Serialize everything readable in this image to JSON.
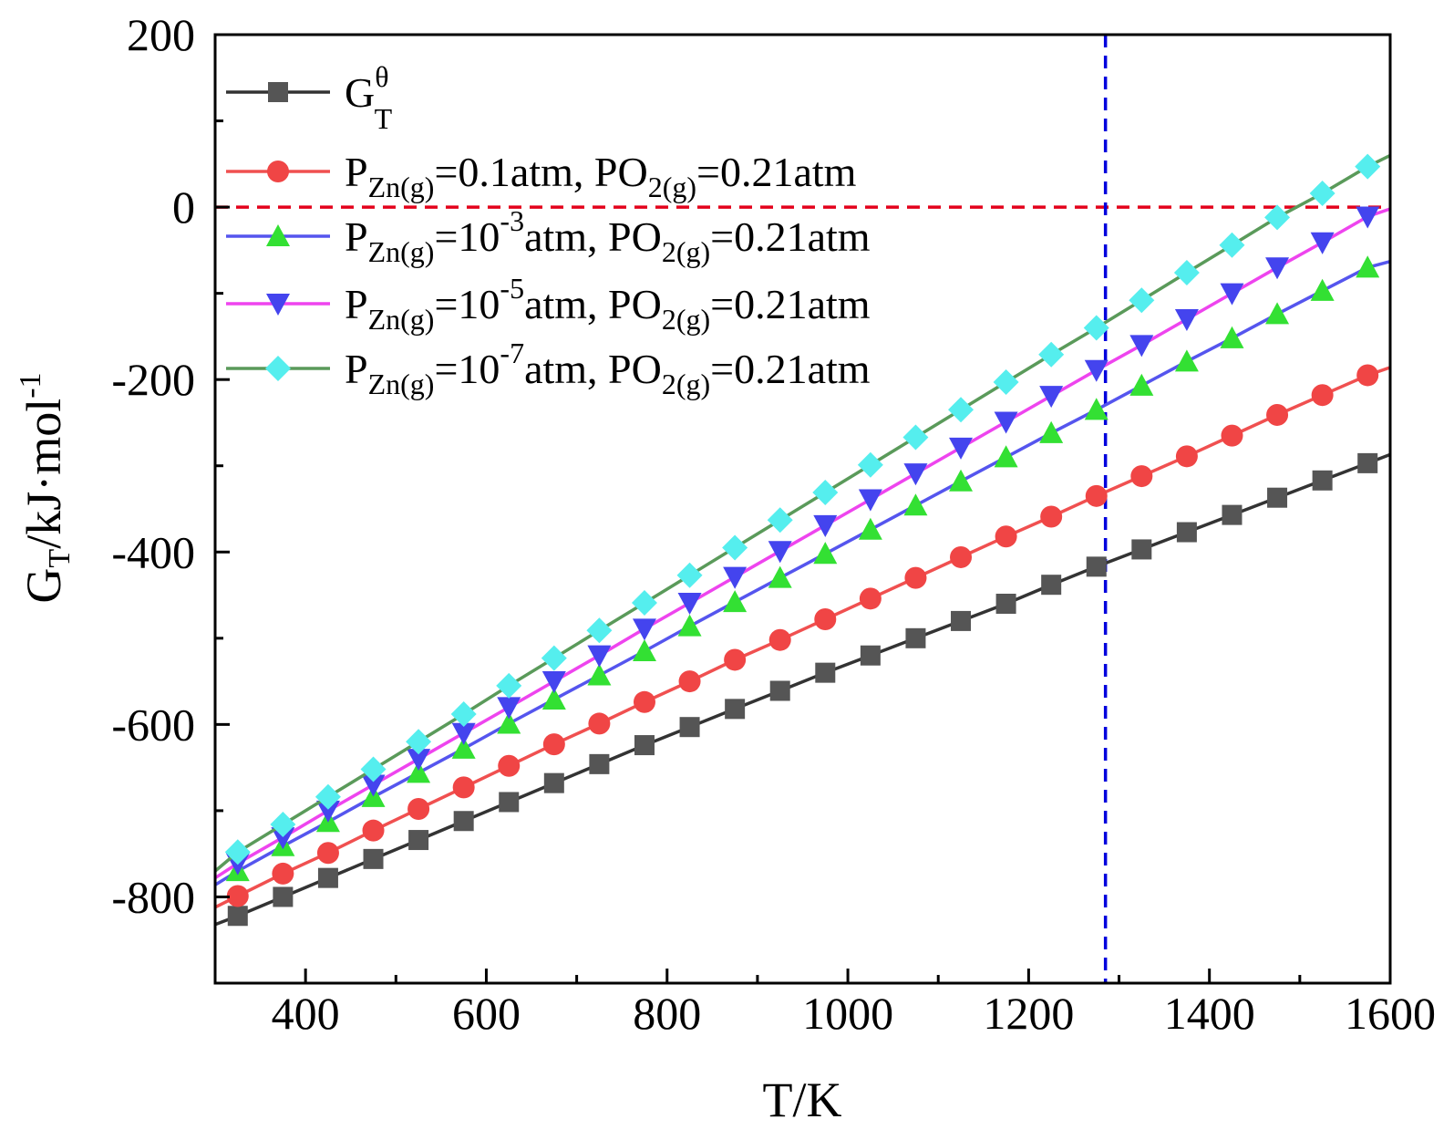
{
  "chart_data": {
    "type": "line",
    "title": "",
    "xlabel": "T/K",
    "ylabel": {
      "main": "G",
      "sub": "T",
      "rest": "/kJ·mol",
      "sup": "-1"
    },
    "xlim": [
      300,
      1600
    ],
    "ylim": [
      -900,
      200
    ],
    "xticks": [
      "400",
      "600",
      "800",
      "1000",
      "1200",
      "1400",
      "1600"
    ],
    "yticks": [
      "200",
      "0",
      "-200",
      "-400",
      "-600",
      "-800"
    ],
    "reference_lines": {
      "horizontal_y": 0,
      "horizontal_color": "#e3001b",
      "vertical_x": 1285,
      "vertical_color": "#0000dd"
    },
    "x": [
      325,
      375,
      425,
      475,
      525,
      575,
      625,
      675,
      725,
      775,
      825,
      875,
      925,
      975,
      1025,
      1075,
      1125,
      1175,
      1225,
      1275,
      1325,
      1375,
      1425,
      1475,
      1525,
      1575
    ],
    "series": [
      {
        "name": "G_T^θ",
        "legend": {
          "parts": [
            {
              "t": "G"
            },
            {
              "t": "θ",
              "sup": true
            },
            {
              "t": "T",
              "sub": true
            }
          ]
        },
        "marker": "square",
        "line_color": "#333333",
        "marker_color": "#555555",
        "line_start": [
          300,
          -832
        ],
        "line_end": [
          1600,
          -287
        ],
        "values": [
          -822,
          -800,
          -778,
          -756,
          -734,
          -712,
          -690,
          -668,
          -646,
          -624,
          -603,
          -582,
          -561,
          -540,
          -520,
          -500,
          -480,
          -460,
          -438,
          -417,
          -397,
          -377,
          -357,
          -337,
          -317,
          -297
        ]
      },
      {
        "name": "PZn(g)=0.1atm, PO2(g)=0.21atm",
        "legend": {
          "parts": [
            {
              "t": "P"
            },
            {
              "t": "Zn(g)",
              "sub": true
            },
            {
              "t": "=0.1atm, PO"
            },
            {
              "t": "2(g)",
              "sub": true
            },
            {
              "t": "=0.21atm"
            }
          ]
        },
        "marker": "circle",
        "line_color": "#f05050",
        "marker_color": "#f04545",
        "line_start": [
          300,
          -812
        ],
        "line_end": [
          1600,
          -186
        ],
        "values": [
          -799,
          -773,
          -749,
          -723,
          -698,
          -673,
          -648,
          -623,
          -599,
          -574,
          -550,
          -525,
          -502,
          -478,
          -454,
          -430,
          -406,
          -382,
          -359,
          -335,
          -312,
          -289,
          -265,
          -241,
          -218,
          -195
        ]
      },
      {
        "name": "PZn(g)=10-3atm, PO2(g)=0.21atm",
        "legend": {
          "parts": [
            {
              "t": "P"
            },
            {
              "t": "Zn(g)",
              "sub": true
            },
            {
              "t": "=10"
            },
            {
              "t": "-3",
              "sup": true
            },
            {
              "t": "atm, PO"
            },
            {
              "t": "2(g)",
              "sub": true
            },
            {
              "t": "=0.21atm"
            }
          ]
        },
        "marker": "triangle-up",
        "line_color": "#5555ee",
        "marker_color": "#33e033",
        "line_start": [
          300,
          -786
        ],
        "line_end": [
          1600,
          -63
        ],
        "values": [
          -770,
          -741,
          -713,
          -684,
          -656,
          -628,
          -599,
          -571,
          -543,
          -515,
          -486,
          -458,
          -430,
          -402,
          -374,
          -346,
          -318,
          -290,
          -262,
          -235,
          -207,
          -179,
          -152,
          -124,
          -97,
          -70
        ]
      },
      {
        "name": "PZn(g)=10-5atm, PO2(g)=0.21atm",
        "legend": {
          "parts": [
            {
              "t": "P"
            },
            {
              "t": "Zn(g)",
              "sub": true
            },
            {
              "t": "=10"
            },
            {
              "t": "-5",
              "sup": true
            },
            {
              "t": "atm, PO"
            },
            {
              "t": "2(g)",
              "sub": true
            },
            {
              "t": "=0.21atm"
            }
          ]
        },
        "marker": "triangle-down",
        "line_color": "#ee44ee",
        "marker_color": "#4444ee",
        "line_start": [
          300,
          -778
        ],
        "line_end": [
          1600,
          -2
        ],
        "values": [
          -761,
          -731,
          -700,
          -670,
          -640,
          -610,
          -580,
          -550,
          -520,
          -489,
          -459,
          -429,
          -399,
          -369,
          -339,
          -309,
          -279,
          -249,
          -219,
          -189,
          -160,
          -130,
          -100,
          -70,
          -41,
          -11
        ]
      },
      {
        "name": "PZn(g)=10-7atm, PO2(g)=0.21atm",
        "legend": {
          "parts": [
            {
              "t": "P"
            },
            {
              "t": "Zn(g)",
              "sub": true
            },
            {
              "t": "=10"
            },
            {
              "t": "-7",
              "sup": true
            },
            {
              "t": "atm, PO"
            },
            {
              "t": "2(g)",
              "sub": true
            },
            {
              "t": "=0.21atm"
            }
          ]
        },
        "marker": "diamond",
        "line_color": "#5a9a5a",
        "marker_color": "#55eeee",
        "line_start": [
          300,
          -770
        ],
        "line_end": [
          1600,
          60
        ],
        "values": [
          -748,
          -716,
          -684,
          -652,
          -620,
          -588,
          -555,
          -523,
          -491,
          -459,
          -427,
          -395,
          -363,
          -331,
          -299,
          -267,
          -235,
          -203,
          -171,
          -140,
          -108,
          -76,
          -44,
          -12,
          16,
          47
        ]
      }
    ]
  }
}
